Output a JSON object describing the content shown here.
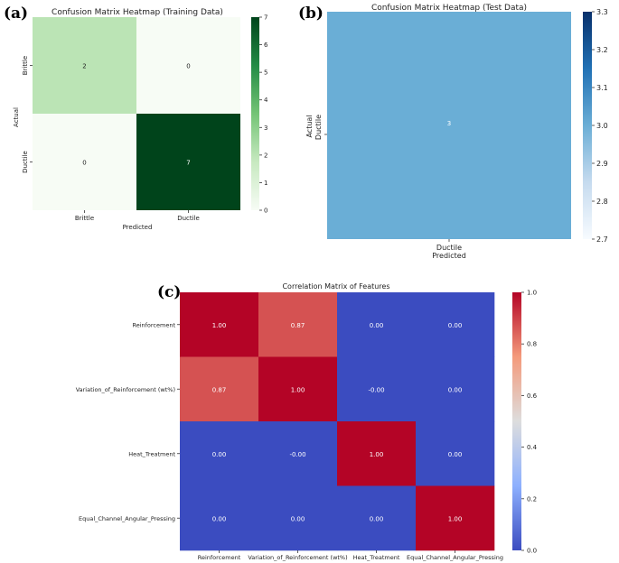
{
  "panels": {
    "a": "(a)",
    "b": "(b)",
    "c": "(c)"
  },
  "chart_data": [
    {
      "type": "heatmap",
      "title": "Confusion Matrix Heatmap (Training Data)",
      "xlabel": "Predicted",
      "ylabel": "Actual",
      "x_categories": [
        "Brittle",
        "Ductile"
      ],
      "y_categories": [
        "Brittle",
        "Ductile"
      ],
      "values": [
        [
          2,
          0
        ],
        [
          0,
          7
        ]
      ],
      "colormap": "Greens",
      "vmin": 0,
      "vmax": 7,
      "colorbar_ticks": [
        "0",
        "1",
        "2",
        "3",
        "4",
        "5",
        "6",
        "7"
      ]
    },
    {
      "type": "heatmap",
      "title": "Confusion Matrix Heatmap (Test Data)",
      "xlabel": "Predicted",
      "ylabel": "Actual",
      "x_categories": [
        "Ductile"
      ],
      "y_categories": [
        "Ductile"
      ],
      "values": [
        [
          3
        ]
      ],
      "colormap": "Blues",
      "vmin": 2.7,
      "vmax": 3.3,
      "cell_color": "#6aaed6",
      "colorbar_ticks": [
        "2.7",
        "2.8",
        "2.9",
        "3.0",
        "3.1",
        "3.2",
        "3.3"
      ]
    },
    {
      "type": "heatmap",
      "title": "Correlation Matrix of Features",
      "xlabel": "",
      "ylabel": "",
      "categories": [
        "Reinforcement",
        "Variation_of_Reinforcement (wt%)",
        "Heat_Treatment",
        "Equal_Channel_Angular_Pressing"
      ],
      "values": [
        [
          1.0,
          0.87,
          0.0,
          0.0
        ],
        [
          0.87,
          1.0,
          -0.0,
          0.0
        ],
        [
          0.0,
          -0.0,
          1.0,
          0.0
        ],
        [
          0.0,
          0.0,
          0.0,
          1.0
        ]
      ],
      "labels": [
        [
          "1.00",
          "0.87",
          "0.00",
          "0.00"
        ],
        [
          "0.87",
          "1.00",
          "-0.00",
          "0.00"
        ],
        [
          "0.00",
          "-0.00",
          "1.00",
          "0.00"
        ],
        [
          "0.00",
          "0.00",
          "0.00",
          "1.00"
        ]
      ],
      "colormap": "coolwarm",
      "vmin": 0.0,
      "vmax": 1.0,
      "colorbar_ticks": [
        "0.0",
        "0.2",
        "0.4",
        "0.6",
        "0.8",
        "1.0"
      ]
    }
  ]
}
